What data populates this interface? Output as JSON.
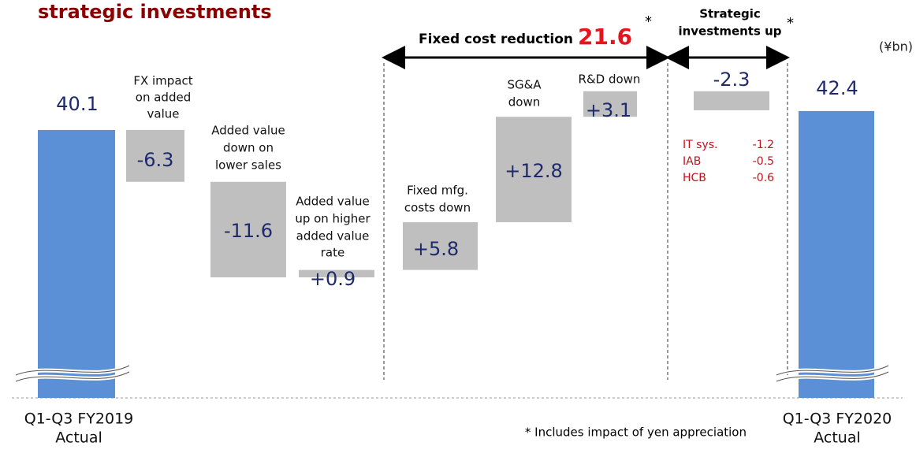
{
  "chart_data": {
    "type": "waterfall",
    "title": "strategic investments",
    "unit": "(¥bn)",
    "categories": [
      [
        "Q1-Q3 FY2019",
        "Actual"
      ],
      [
        "FX impact",
        "on added",
        "value"
      ],
      [
        "Added value",
        "down on",
        "lower sales"
      ],
      [
        "Added value",
        "up on higher",
        "added value",
        "rate"
      ],
      [
        "Fixed mfg.",
        "costs down"
      ],
      [
        "SG&A",
        "down"
      ],
      [
        "R&D down"
      ],
      [],
      [
        "Q1-Q3 FY2020",
        "Actual"
      ]
    ],
    "values": [
      40.1,
      -6.3,
      -11.6,
      0.9,
      5.8,
      12.8,
      3.1,
      -2.3,
      42.4
    ],
    "value_labels": [
      "40.1",
      "-6.3",
      "-11.6",
      "+0.9",
      "+5.8",
      "+12.8",
      "+3.1",
      "-2.3",
      "42.4"
    ],
    "colors": {
      "total": "#5b8fd6",
      "change": "#bfbfbf",
      "value_text": "#1f2a6b",
      "title": "#8b0000",
      "highlight": "#e8141b",
      "breakdown": "#c0121c"
    },
    "brackets": [
      {
        "label": "Fixed cost reduction",
        "value": 21.6,
        "mark": "*"
      },
      {
        "label": [
          "Strategic",
          "investments up"
        ],
        "mark": "*"
      }
    ],
    "breakdown": [
      {
        "label": "IT sys.",
        "value": -1.2
      },
      {
        "label": "IAB",
        "value": -0.5
      },
      {
        "label": "HCB",
        "value": -0.6
      }
    ],
    "footnote": "* Includes impact of yen appreciation"
  }
}
